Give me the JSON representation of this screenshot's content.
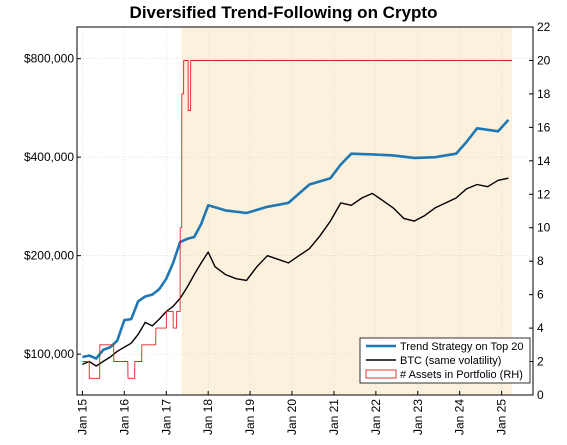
{
  "chart_data": {
    "type": "line",
    "title": "Diversified Trend-Following on Crypto",
    "xlabel": "",
    "ylabel": "",
    "y_scale": "log",
    "ylim": [
      75000,
      1000000
    ],
    "y2lim": [
      0,
      22
    ],
    "yticks": [
      100000,
      200000,
      400000,
      800000
    ],
    "ytick_labels": [
      "$100,000",
      "$200,000",
      "$400,000",
      "$800,000"
    ],
    "y2ticks": [
      0,
      2,
      4,
      6,
      8,
      10,
      12,
      14,
      16,
      18,
      20,
      22
    ],
    "y2tick_labels": [
      "0",
      "2",
      "4",
      "6",
      "8",
      "10",
      "12",
      "14",
      "16",
      "18",
      "20",
      "22"
    ],
    "xlim": [
      "2014-11-15",
      "2025-10-01"
    ],
    "xtick_labels": [
      "Jan 15",
      "Jan 16",
      "Jan 17",
      "Jan 18",
      "Jan 19",
      "Jan 20",
      "Jan 21",
      "Jan 22",
      "Jan 23",
      "Jan 24",
      "Jan 25"
    ],
    "xticks": [
      "2015-01-01",
      "2016-01-01",
      "2017-01-01",
      "2018-01-01",
      "2019-01-01",
      "2020-01-01",
      "2021-01-01",
      "2022-01-01",
      "2023-01-01",
      "2024-01-01",
      "2025-01-01"
    ],
    "grid": true,
    "legend_position": "bottom-right",
    "shaded_region": {
      "x": [
        "2017-05-15",
        "2025-04-01"
      ],
      "color": "#fcf1dd"
    },
    "series": [
      {
        "name": "Trend Strategy on Top 20",
        "axis": "left",
        "color": "#1f77b4",
        "x": [
          "2015-01-01",
          "2015-03-01",
          "2015-05-01",
          "2015-07-01",
          "2015-09-01",
          "2015-11-01",
          "2016-01-01",
          "2016-03-01",
          "2016-05-01",
          "2016-07-01",
          "2016-09-01",
          "2016-11-01",
          "2017-01-01",
          "2017-03-01",
          "2017-05-01",
          "2017-07-01",
          "2017-09-01",
          "2017-11-01",
          "2018-01-01",
          "2018-06-01",
          "2018-12-01",
          "2019-06-01",
          "2019-12-01",
          "2020-06-01",
          "2020-12-01",
          "2021-03-01",
          "2021-06-01",
          "2021-12-01",
          "2022-06-01",
          "2022-12-01",
          "2023-06-01",
          "2023-12-01",
          "2024-03-01",
          "2024-06-01",
          "2024-12-01",
          "2025-03-01"
        ],
        "values": [
          98000,
          99000,
          97000,
          103000,
          105000,
          110000,
          127000,
          128000,
          145000,
          150000,
          152000,
          158000,
          170000,
          190000,
          220000,
          225000,
          228000,
          250000,
          285000,
          275000,
          270000,
          282000,
          290000,
          330000,
          345000,
          380000,
          410000,
          408000,
          405000,
          398000,
          400000,
          410000,
          445000,
          490000,
          480000,
          520000
        ]
      },
      {
        "name": "BTC (same volatility)",
        "axis": "left",
        "color": "#000000",
        "x": [
          "2015-01-01",
          "2015-03-01",
          "2015-05-01",
          "2015-07-01",
          "2015-09-01",
          "2015-11-01",
          "2016-01-01",
          "2016-03-01",
          "2016-05-01",
          "2016-07-01",
          "2016-09-01",
          "2016-11-01",
          "2017-01-01",
          "2017-03-01",
          "2017-05-01",
          "2017-07-01",
          "2017-09-01",
          "2017-11-01",
          "2018-01-01",
          "2018-03-01",
          "2018-06-01",
          "2018-09-01",
          "2018-12-01",
          "2019-03-01",
          "2019-06-01",
          "2019-09-01",
          "2019-12-01",
          "2020-03-01",
          "2020-06-01",
          "2020-09-01",
          "2020-12-01",
          "2021-03-01",
          "2021-06-01",
          "2021-09-01",
          "2021-12-01",
          "2022-03-01",
          "2022-06-01",
          "2022-09-01",
          "2022-12-01",
          "2023-03-01",
          "2023-06-01",
          "2023-09-01",
          "2023-12-01",
          "2024-03-01",
          "2024-06-01",
          "2024-09-01",
          "2024-12-01",
          "2025-03-01"
        ],
        "values": [
          93000,
          95000,
          92000,
          95000,
          98000,
          102000,
          105000,
          108000,
          115000,
          125000,
          122000,
          128000,
          135000,
          140000,
          148000,
          160000,
          175000,
          190000,
          205000,
          185000,
          175000,
          170000,
          168000,
          185000,
          200000,
          195000,
          190000,
          200000,
          210000,
          230000,
          255000,
          290000,
          285000,
          300000,
          310000,
          295000,
          280000,
          260000,
          255000,
          265000,
          280000,
          290000,
          300000,
          320000,
          330000,
          325000,
          340000,
          345000
        ]
      },
      {
        "name": "# Assets in Portfolio (RH)",
        "axis": "right",
        "color": "#e02020",
        "x": [
          "2015-01-01",
          "2015-03-01",
          "2015-03-02",
          "2015-06-01",
          "2015-06-02",
          "2015-10-01",
          "2015-10-02",
          "2016-02-01",
          "2016-02-02",
          "2016-04-01",
          "2016-04-02",
          "2016-06-01",
          "2016-06-02",
          "2016-10-01",
          "2016-10-02",
          "2017-01-01",
          "2017-01-02",
          "2017-03-01",
          "2017-03-02",
          "2017-04-01",
          "2017-04-02",
          "2017-05-01",
          "2017-05-02",
          "2017-05-15",
          "2017-05-16",
          "2017-06-01",
          "2017-06-02",
          "2017-07-10",
          "2017-07-11",
          "2017-08-01",
          "2017-08-02",
          "2025-04-01"
        ],
        "values": [
          2,
          2,
          1,
          1,
          3,
          3,
          2,
          2,
          1,
          1,
          2,
          2,
          3,
          3,
          4,
          4,
          5,
          5,
          4,
          4,
          5,
          5,
          10,
          10,
          18,
          18,
          20,
          20,
          17,
          17,
          20,
          20
        ]
      }
    ]
  }
}
